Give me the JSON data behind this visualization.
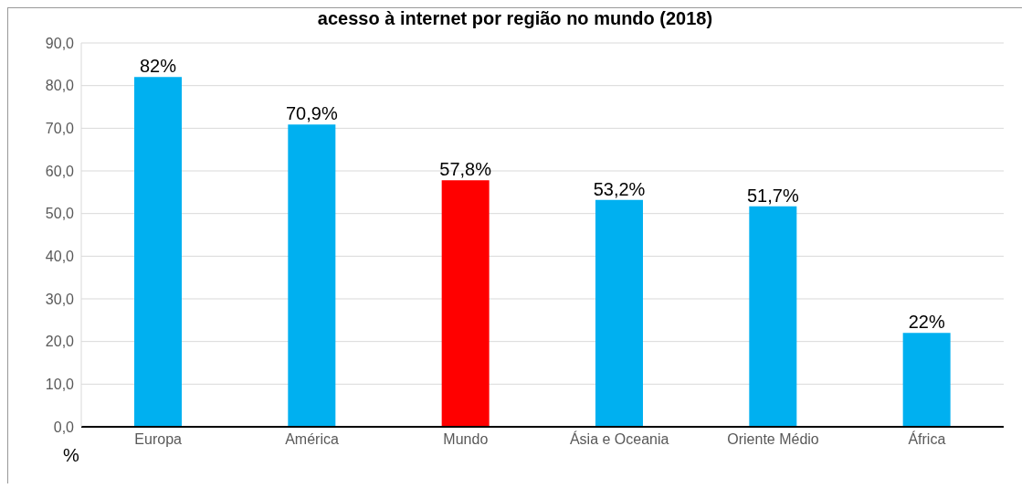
{
  "chart_data": {
    "type": "bar",
    "title": "acesso à internet por região no mundo (2018)",
    "ylabel": "%",
    "categories": [
      "Europa",
      "América",
      "Mundo",
      "Ásia e Oceania",
      "Oriente Médio",
      "África"
    ],
    "values": [
      82,
      70.9,
      57.8,
      53.2,
      51.7,
      22
    ],
    "colors": [
      "#00b0f0",
      "#00b0f0",
      "#ff0000",
      "#00b0f0",
      "#00b0f0",
      "#00b0f0"
    ],
    "value_labels": [
      "82%",
      "70,9%",
      "57,8%",
      "53,2%",
      "51,7%",
      "22%"
    ],
    "ylim": [
      0,
      90
    ],
    "yticks": [
      {
        "value": 0,
        "label": "0,0"
      },
      {
        "value": 10,
        "label": "10,0"
      },
      {
        "value": 20,
        "label": "20,0"
      },
      {
        "value": 30,
        "label": "30,0"
      },
      {
        "value": 40,
        "label": "40,0"
      },
      {
        "value": 50,
        "label": "50,0"
      },
      {
        "value": 60,
        "label": "60,0"
      },
      {
        "value": 70,
        "label": "70,0"
      },
      {
        "value": 80,
        "label": "80,0"
      },
      {
        "value": 90,
        "label": "90,0"
      }
    ],
    "grid": "y",
    "legend": false
  }
}
